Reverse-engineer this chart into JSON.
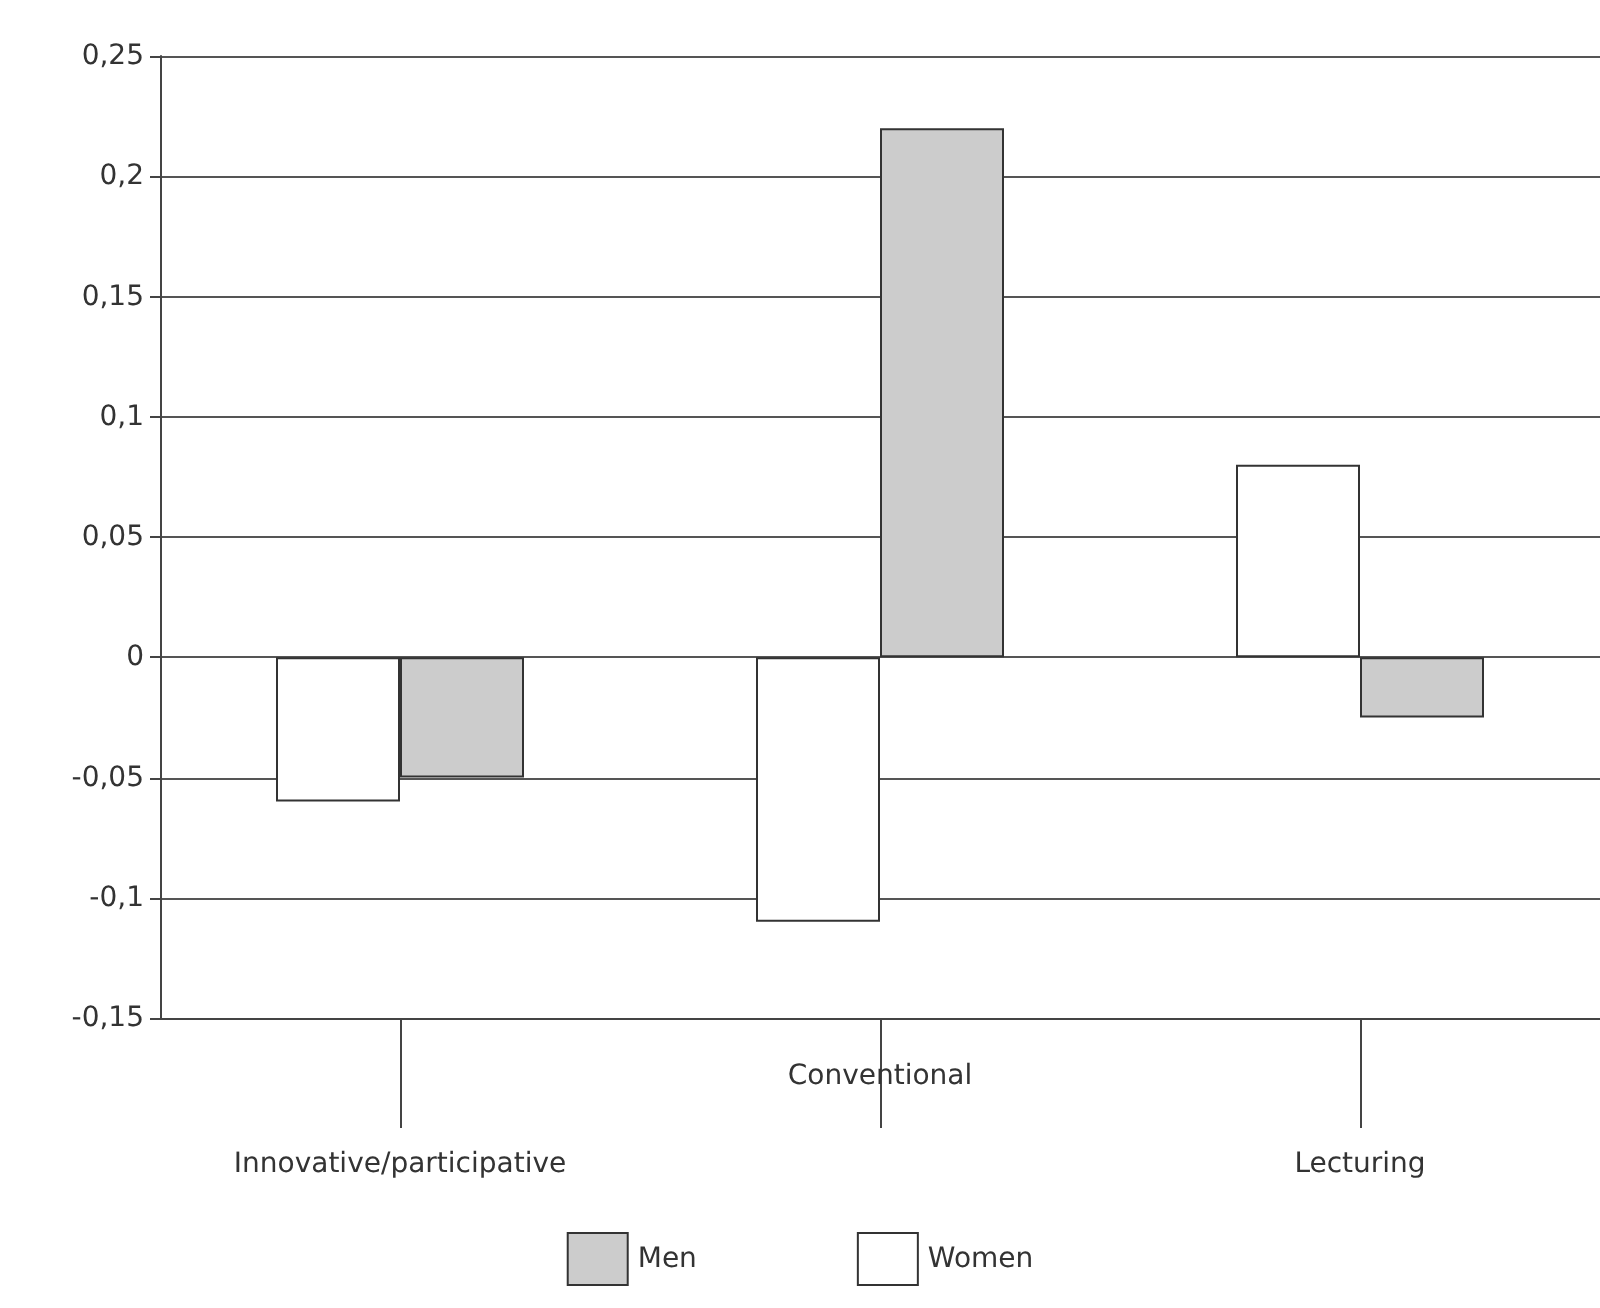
{
  "chart_data": {
    "type": "bar",
    "categories": [
      "Innovative/participative",
      "Conventional",
      "Lecturing"
    ],
    "series": [
      {
        "name": "Women",
        "color": "#ffffff",
        "values": [
          -0.06,
          -0.11,
          0.08
        ]
      },
      {
        "name": "Men",
        "color": "#cccccc",
        "values": [
          -0.05,
          0.22,
          -0.025
        ]
      }
    ],
    "ylim": [
      -0.15,
      0.25
    ],
    "yticks": [
      {
        "value": -0.15,
        "label": "-0,15"
      },
      {
        "value": -0.1,
        "label": "-0,1"
      },
      {
        "value": -0.05,
        "label": "-0,05"
      },
      0,
      {
        "value": 0.05,
        "label": "0,05"
      },
      {
        "value": 0.1,
        "label": "0,1"
      },
      {
        "value": 0.15,
        "label": "0,15"
      },
      {
        "value": 0.2,
        "label": "0,2"
      },
      {
        "value": 0.25,
        "label": "0,25"
      }
    ],
    "grid": "y",
    "legend": "bottom"
  }
}
